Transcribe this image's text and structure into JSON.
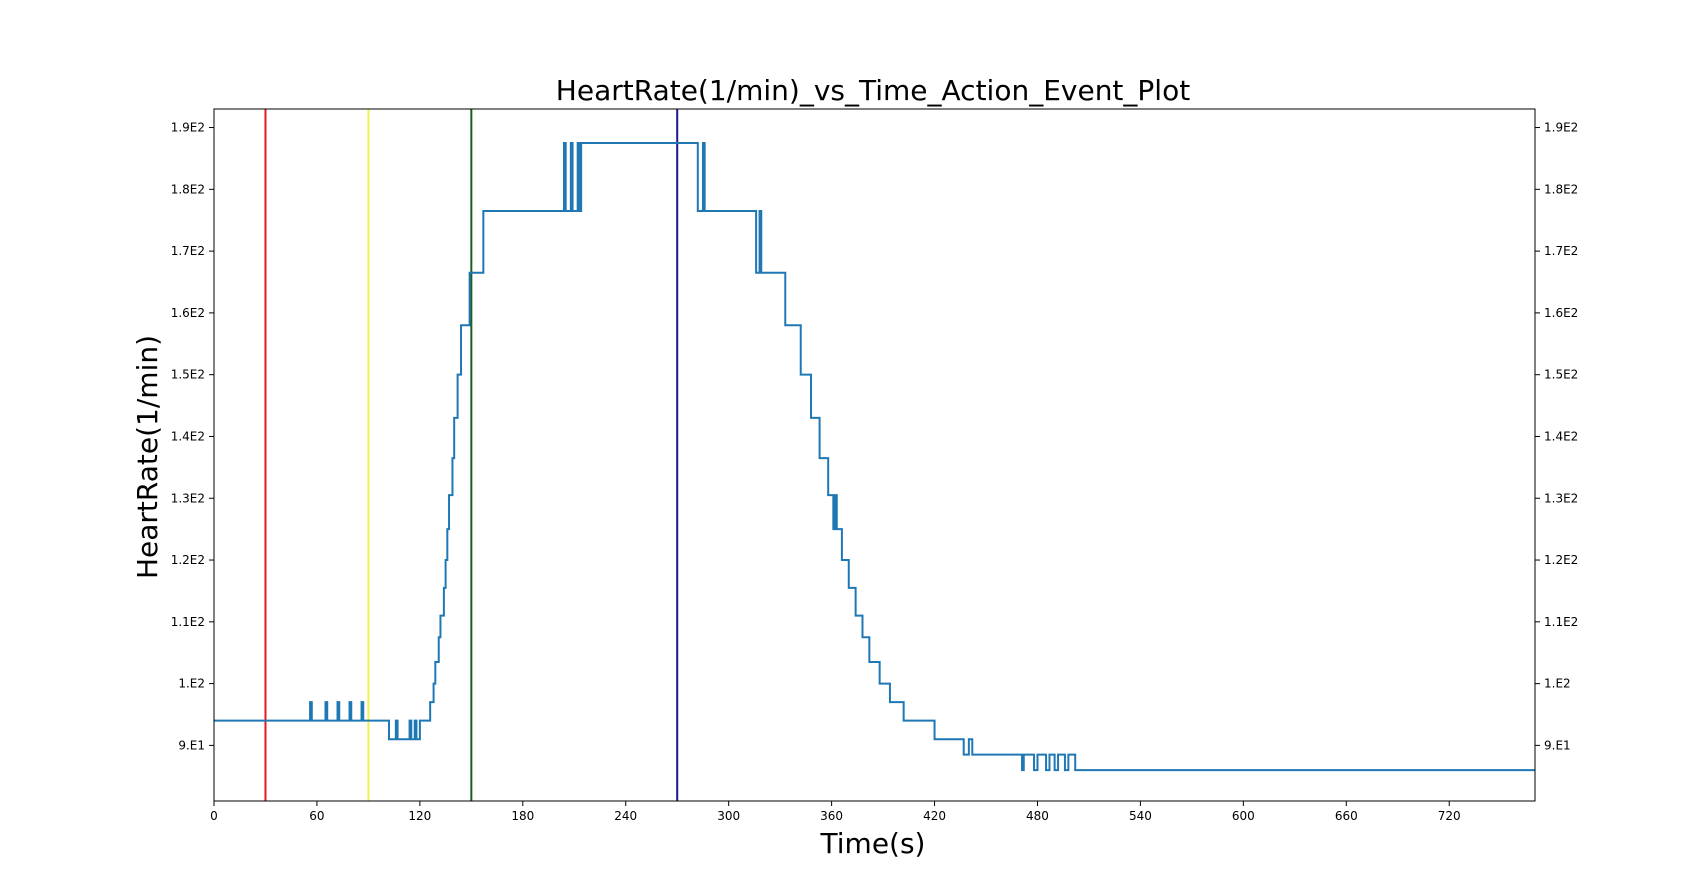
{
  "chart_data": {
    "type": "line",
    "title": "HeartRate(1/min)_vs_Time_Action_Event_Plot",
    "xlabel": "Time(s)",
    "ylabel": "HeartRate(1/min)",
    "xlim": [
      0,
      770
    ],
    "ylim": [
      81,
      193
    ],
    "x_ticks": [
      0,
      60,
      120,
      180,
      240,
      300,
      360,
      420,
      480,
      540,
      600,
      660,
      720
    ],
    "y_ticks": [
      {
        "value": 90,
        "label": "9.E1"
      },
      {
        "value": 100,
        "label": "1.E2"
      },
      {
        "value": 110,
        "label": "1.1E2"
      },
      {
        "value": 120,
        "label": "1.2E2"
      },
      {
        "value": 130,
        "label": "1.3E2"
      },
      {
        "value": 140,
        "label": "1.4E2"
      },
      {
        "value": 150,
        "label": "1.5E2"
      },
      {
        "value": 160,
        "label": "1.6E2"
      },
      {
        "value": 170,
        "label": "1.7E2"
      },
      {
        "value": 180,
        "label": "1.8E2"
      },
      {
        "value": 190,
        "label": "1.9E2"
      }
    ],
    "y_ticks_right": true,
    "grid": false,
    "event_lines": [
      {
        "x": 30,
        "color": "#e41a1c"
      },
      {
        "x": 90,
        "color": "#f2f04a"
      },
      {
        "x": 150,
        "color": "#1b5e20"
      },
      {
        "x": 270,
        "color": "#1a1a8c"
      }
    ],
    "series": [
      {
        "color": "#1f77b4",
        "points": [
          [
            0,
            94
          ],
          [
            56,
            94
          ],
          [
            56,
            97
          ],
          [
            57,
            97
          ],
          [
            57,
            94
          ],
          [
            65,
            94
          ],
          [
            65,
            97
          ],
          [
            66,
            97
          ],
          [
            66,
            94
          ],
          [
            72,
            94
          ],
          [
            72,
            97
          ],
          [
            73,
            97
          ],
          [
            73,
            94
          ],
          [
            79,
            94
          ],
          [
            79,
            97
          ],
          [
            80,
            97
          ],
          [
            80,
            94
          ],
          [
            86,
            94
          ],
          [
            86,
            97
          ],
          [
            87,
            97
          ],
          [
            87,
            94
          ],
          [
            102,
            94
          ],
          [
            102,
            91
          ],
          [
            106,
            91
          ],
          [
            106,
            94
          ],
          [
            107,
            94
          ],
          [
            107,
            91
          ],
          [
            114,
            91
          ],
          [
            114,
            94
          ],
          [
            115,
            94
          ],
          [
            115,
            91
          ],
          [
            117,
            91
          ],
          [
            117,
            94
          ],
          [
            118,
            94
          ],
          [
            118,
            91
          ],
          [
            120,
            91
          ],
          [
            120,
            94
          ],
          [
            126,
            94
          ],
          [
            126,
            97
          ],
          [
            128,
            97
          ],
          [
            128,
            100
          ],
          [
            129,
            100
          ],
          [
            129,
            103.5
          ],
          [
            131,
            103.5
          ],
          [
            131,
            107.5
          ],
          [
            132,
            107.5
          ],
          [
            132,
            111
          ],
          [
            134,
            111
          ],
          [
            134,
            115.5
          ],
          [
            135,
            115.5
          ],
          [
            135,
            120
          ],
          [
            136,
            120
          ],
          [
            136,
            125
          ],
          [
            137,
            125
          ],
          [
            137,
            130.5
          ],
          [
            139,
            130.5
          ],
          [
            139,
            136.5
          ],
          [
            140,
            136.5
          ],
          [
            140,
            143
          ],
          [
            142,
            143
          ],
          [
            142,
            150
          ],
          [
            144,
            150
          ],
          [
            144,
            158
          ],
          [
            149,
            158
          ],
          [
            149,
            166.5
          ],
          [
            157,
            166.5
          ],
          [
            157,
            176.5
          ],
          [
            204,
            176.5
          ],
          [
            204,
            187.5
          ],
          [
            205,
            187.5
          ],
          [
            205,
            176.5
          ],
          [
            208,
            176.5
          ],
          [
            208,
            187.5
          ],
          [
            209,
            187.5
          ],
          [
            209,
            176.5
          ],
          [
            212,
            176.5
          ],
          [
            212,
            187.5
          ],
          [
            213,
            187.5
          ],
          [
            213,
            176.5
          ],
          [
            214,
            176.5
          ],
          [
            214,
            187.5
          ],
          [
            282,
            187.5
          ],
          [
            282,
            176.5
          ],
          [
            285,
            176.5
          ],
          [
            285,
            187.5
          ],
          [
            286,
            187.5
          ],
          [
            286,
            176.5
          ],
          [
            316,
            176.5
          ],
          [
            316,
            166.5
          ],
          [
            318,
            166.5
          ],
          [
            318,
            176.5
          ],
          [
            319,
            176.5
          ],
          [
            319,
            166.5
          ],
          [
            333,
            166.5
          ],
          [
            333,
            158
          ],
          [
            342,
            158
          ],
          [
            342,
            150
          ],
          [
            348,
            150
          ],
          [
            348,
            143
          ],
          [
            353,
            143
          ],
          [
            353,
            136.5
          ],
          [
            358,
            136.5
          ],
          [
            358,
            130.5
          ],
          [
            361,
            130.5
          ],
          [
            361,
            125
          ],
          [
            362,
            125
          ],
          [
            362,
            130.5
          ],
          [
            363,
            130.5
          ],
          [
            363,
            125
          ],
          [
            366,
            125
          ],
          [
            366,
            120
          ],
          [
            370,
            120
          ],
          [
            370,
            115.5
          ],
          [
            374,
            115.5
          ],
          [
            374,
            111
          ],
          [
            378,
            111
          ],
          [
            378,
            107.5
          ],
          [
            382,
            107.5
          ],
          [
            382,
            103.5
          ],
          [
            388,
            103.5
          ],
          [
            388,
            100
          ],
          [
            394,
            100
          ],
          [
            394,
            97
          ],
          [
            402,
            97
          ],
          [
            402,
            94
          ],
          [
            420,
            94
          ],
          [
            420,
            91
          ],
          [
            437,
            91
          ],
          [
            437,
            88.5
          ],
          [
            440,
            88.5
          ],
          [
            440,
            91
          ],
          [
            442,
            91
          ],
          [
            442,
            88.5
          ],
          [
            471,
            88.5
          ],
          [
            471,
            86
          ],
          [
            472,
            86
          ],
          [
            472,
            88.5
          ],
          [
            478,
            88.5
          ],
          [
            478,
            86
          ],
          [
            480,
            86
          ],
          [
            480,
            88.5
          ],
          [
            485,
            88.5
          ],
          [
            485,
            86
          ],
          [
            487,
            86
          ],
          [
            487,
            88.5
          ],
          [
            490,
            88.5
          ],
          [
            490,
            86
          ],
          [
            492,
            86
          ],
          [
            492,
            88.5
          ],
          [
            496,
            88.5
          ],
          [
            496,
            86
          ],
          [
            498,
            86
          ],
          [
            498,
            88.5
          ],
          [
            502,
            88.5
          ],
          [
            502,
            86
          ],
          [
            770,
            86
          ]
        ]
      }
    ]
  }
}
